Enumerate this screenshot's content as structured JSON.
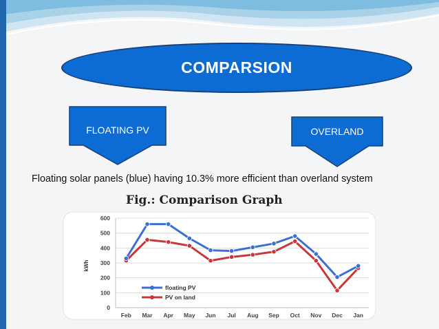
{
  "slide": {
    "title": "COMPARSION",
    "left_arrow_label": "FLOATING PV",
    "right_arrow_label": "OVERLAND",
    "statement": "Floating solar panels (blue) having 10.3% more efficient than overland system",
    "figure_caption": "Fig.: Comparison Graph"
  },
  "colors": {
    "title_fill": "#0d6bd4",
    "series_floating": "#3b6fd1",
    "series_land": "#c8383a"
  },
  "chart_data": {
    "type": "line",
    "title": "",
    "xlabel": "",
    "ylabel": "kWh",
    "categories": [
      "Feb",
      "Mar",
      "Apr",
      "May",
      "Jun",
      "Jul",
      "Aug",
      "Sep",
      "Oct",
      "Nov",
      "Dec",
      "Jan"
    ],
    "ylim": [
      0,
      600
    ],
    "yticks": [
      "0",
      "100",
      "200",
      "300",
      "400",
      "500",
      "600"
    ],
    "grid": true,
    "legend_position": "bottom-left",
    "series": [
      {
        "name": "floating PV",
        "values": [
          330,
          560,
          560,
          465,
          385,
          380,
          405,
          430,
          480,
          360,
          205,
          280
        ]
      },
      {
        "name": "PV on land",
        "values": [
          315,
          455,
          440,
          415,
          315,
          340,
          355,
          375,
          445,
          315,
          115,
          265
        ]
      }
    ]
  }
}
